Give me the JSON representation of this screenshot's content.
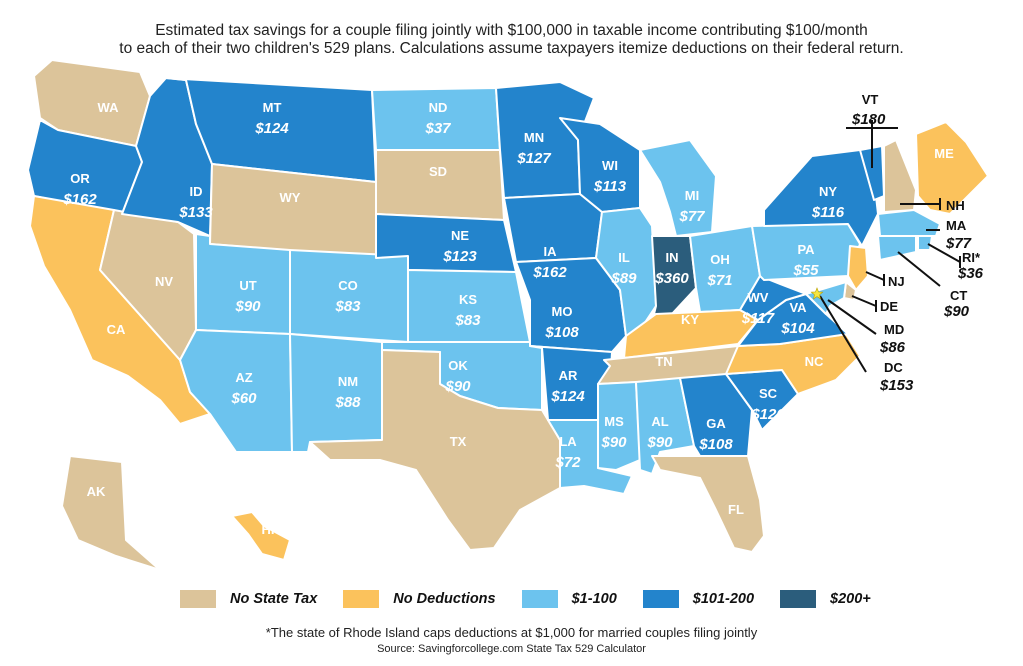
{
  "header": {
    "line1": "Estimated tax savings for a couple filing jointly with $100,000 in taxable income contributing $100/month",
    "line2": "to each of their two children's 529 plans. Calculations assume taxpayers itemize deductions on their federal return."
  },
  "colors": {
    "no_state_tax": "#dcc49a",
    "no_deductions": "#fbc25c",
    "low": "#6cc3ee",
    "mid": "#2384cc",
    "high": "#2b5d7c",
    "star": "#f5e642"
  },
  "legend": [
    {
      "label": "No State Tax",
      "category": "no_state_tax"
    },
    {
      "label": "No Deductions",
      "category": "no_deductions"
    },
    {
      "label": "$1-100",
      "category": "low"
    },
    {
      "label": "$101-200",
      "category": "mid"
    },
    {
      "label": "$200+",
      "category": "high"
    }
  ],
  "states": [
    {
      "abbr": "WA",
      "value": "",
      "category": "no_state_tax"
    },
    {
      "abbr": "OR",
      "value": "$162",
      "category": "mid"
    },
    {
      "abbr": "CA",
      "value": "",
      "category": "no_deductions"
    },
    {
      "abbr": "NV",
      "value": "",
      "category": "no_state_tax"
    },
    {
      "abbr": "ID",
      "value": "$133",
      "category": "mid"
    },
    {
      "abbr": "MT",
      "value": "$124",
      "category": "mid"
    },
    {
      "abbr": "WY",
      "value": "",
      "category": "no_state_tax"
    },
    {
      "abbr": "UT",
      "value": "$90",
      "category": "low"
    },
    {
      "abbr": "AZ",
      "value": "$60",
      "category": "low"
    },
    {
      "abbr": "CO",
      "value": "$83",
      "category": "low"
    },
    {
      "abbr": "NM",
      "value": "$88",
      "category": "low"
    },
    {
      "abbr": "ND",
      "value": "$37",
      "category": "low"
    },
    {
      "abbr": "SD",
      "value": "",
      "category": "no_state_tax"
    },
    {
      "abbr": "NE",
      "value": "$123",
      "category": "mid"
    },
    {
      "abbr": "KS",
      "value": "$83",
      "category": "low"
    },
    {
      "abbr": "OK",
      "value": "$90",
      "category": "low"
    },
    {
      "abbr": "TX",
      "value": "",
      "category": "no_state_tax"
    },
    {
      "abbr": "MN",
      "value": "$127",
      "category": "mid"
    },
    {
      "abbr": "IA",
      "value": "$162",
      "category": "mid"
    },
    {
      "abbr": "MO",
      "value": "$108",
      "category": "mid"
    },
    {
      "abbr": "AR",
      "value": "$124",
      "category": "mid"
    },
    {
      "abbr": "LA",
      "value": "$72",
      "category": "low"
    },
    {
      "abbr": "WI",
      "value": "$113",
      "category": "mid"
    },
    {
      "abbr": "IL",
      "value": "$89",
      "category": "low"
    },
    {
      "abbr": "MI",
      "value": "$77",
      "category": "low"
    },
    {
      "abbr": "IN",
      "value": "$360",
      "category": "high"
    },
    {
      "abbr": "OH",
      "value": "$71",
      "category": "low"
    },
    {
      "abbr": "KY",
      "value": "",
      "category": "no_deductions"
    },
    {
      "abbr": "TN",
      "value": "",
      "category": "no_state_tax"
    },
    {
      "abbr": "MS",
      "value": "$90",
      "category": "low"
    },
    {
      "abbr": "AL",
      "value": "$90",
      "category": "low"
    },
    {
      "abbr": "GA",
      "value": "$108",
      "category": "mid"
    },
    {
      "abbr": "FL",
      "value": "",
      "category": "no_state_tax"
    },
    {
      "abbr": "SC",
      "value": "$126",
      "category": "mid"
    },
    {
      "abbr": "NC",
      "value": "",
      "category": "no_deductions"
    },
    {
      "abbr": "VA",
      "value": "$104",
      "category": "mid"
    },
    {
      "abbr": "WV",
      "value": "$117",
      "category": "mid"
    },
    {
      "abbr": "PA",
      "value": "$55",
      "category": "low"
    },
    {
      "abbr": "NY",
      "value": "$116",
      "category": "mid"
    },
    {
      "abbr": "ME",
      "value": "",
      "category": "no_deductions"
    },
    {
      "abbr": "AK",
      "value": "",
      "category": "no_state_tax"
    },
    {
      "abbr": "HI",
      "value": "",
      "category": "no_deductions"
    }
  ],
  "small_states": [
    {
      "abbr": "VT",
      "value": "$180",
      "category": "mid"
    },
    {
      "abbr": "NH",
      "value": "",
      "category": "no_state_tax"
    },
    {
      "abbr": "MA",
      "value": "$77",
      "category": "low"
    },
    {
      "abbr": "RI*",
      "value": "$36",
      "category": "low"
    },
    {
      "abbr": "CT",
      "value": "$90",
      "category": "low"
    },
    {
      "abbr": "NJ",
      "value": "",
      "category": "no_deductions"
    },
    {
      "abbr": "DE",
      "value": "",
      "category": "no_state_tax"
    },
    {
      "abbr": "MD",
      "value": "$86",
      "category": "low"
    },
    {
      "abbr": "DC",
      "value": "$153",
      "category": "mid"
    }
  ],
  "footnote": "*The state of Rhode Island caps deductions at $1,000 for married couples filing jointly",
  "source": "Source: Savingforcollege.com State Tax 529 Calculator"
}
